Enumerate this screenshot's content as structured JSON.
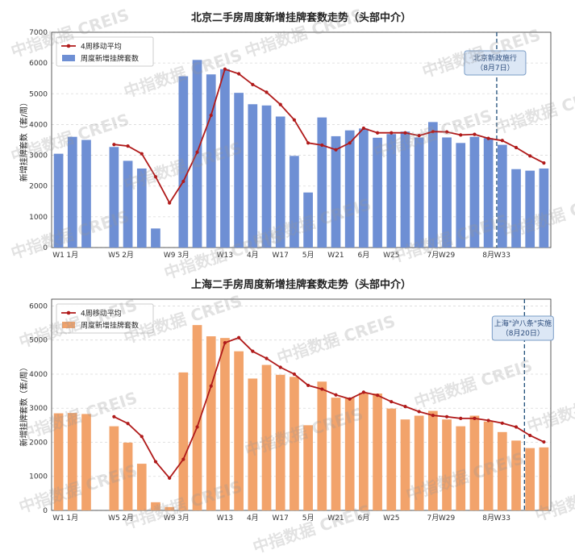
{
  "colors": {
    "line": "#b01a1a",
    "bar_top": "#6e8fd4",
    "bar_bottom": "#f2a36b",
    "policy_line": "#1f4e79",
    "grid": "#d9d9d9",
    "annot_bg": "#dce7f5",
    "annot_border": "#7a9cc6",
    "annot_text": "#2a4a7a"
  },
  "watermark": {
    "text": "中指数据 CREIS"
  },
  "chart_data": [
    {
      "type": "bar",
      "title": "北京二手房周度新增挂牌套数走势（头部中介）",
      "ylabel": "新增挂牌套数（套/周）",
      "ylim": [
        0,
        7000
      ],
      "yticks": [
        "0",
        "1000",
        "2000",
        "3000",
        "4000",
        "5000",
        "6000",
        "7000"
      ],
      "ytick_values": [
        0,
        1000,
        2000,
        3000,
        4000,
        5000,
        6000,
        7000
      ],
      "week_count": 36,
      "bar_weeks": [
        1,
        2,
        3,
        5,
        6,
        7,
        8,
        10,
        11,
        12,
        13,
        14,
        15,
        16,
        17,
        18,
        19,
        20,
        21,
        22,
        23,
        24,
        25,
        26,
        27,
        28,
        29,
        30,
        31,
        32,
        33,
        34,
        35,
        36
      ],
      "bar_values": [
        3050,
        3600,
        3500,
        3270,
        2820,
        2570,
        620,
        5570,
        6100,
        5630,
        5800,
        5030,
        4660,
        4620,
        4260,
        2980,
        1790,
        4230,
        3620,
        3810,
        3870,
        3570,
        3690,
        3770,
        3580,
        4080,
        3580,
        3400,
        3600,
        3560,
        3340,
        2550,
        2500,
        2570
      ],
      "line_weeks": [
        5,
        6,
        7,
        8,
        9,
        10,
        11,
        12,
        13,
        14,
        15,
        16,
        17,
        18,
        19,
        20,
        21,
        22,
        23,
        24,
        25,
        26,
        27,
        28,
        29,
        30,
        31,
        32,
        33,
        34,
        35,
        36
      ],
      "line_values": [
        3350,
        3300,
        3050,
        2300,
        1450,
        2150,
        3100,
        4300,
        5800,
        5650,
        5300,
        5050,
        4650,
        4150,
        3400,
        3330,
        3180,
        3400,
        3880,
        3730,
        3730,
        3730,
        3640,
        3770,
        3760,
        3660,
        3680,
        3550,
        3480,
        3250,
        2980,
        2750
      ],
      "xtick_labels": [
        {
          "week": 1,
          "text": "W1"
        },
        {
          "week": 2,
          "text": "1月"
        },
        {
          "week": 5,
          "text": "W5"
        },
        {
          "week": 6,
          "text": "2月"
        },
        {
          "week": 9,
          "text": "W9"
        },
        {
          "week": 10,
          "text": "3月"
        },
        {
          "week": 13,
          "text": "W13"
        },
        {
          "week": 15,
          "text": "4月"
        },
        {
          "week": 17,
          "text": "W17"
        },
        {
          "week": 19,
          "text": "5月"
        },
        {
          "week": 21,
          "text": "W21"
        },
        {
          "week": 23,
          "text": "6月"
        },
        {
          "week": 25,
          "text": "W25"
        },
        {
          "week": 28,
          "text": "7月"
        },
        {
          "week": 29,
          "text": "W29"
        },
        {
          "week": 32,
          "text": "8月"
        },
        {
          "week": 33,
          "text": "W33"
        }
      ],
      "policy_week": 32.6,
      "annotation": [
        "北京新政施行",
        "（8月7日）"
      ],
      "legend": [
        {
          "kind": "line",
          "label": "4周移动平均"
        },
        {
          "kind": "bar",
          "label": "周度新增挂牌套数"
        }
      ],
      "legend_position": "top-left",
      "grid": "horizontal dashed"
    },
    {
      "type": "bar",
      "title": "上海二手房周度新增挂牌套数走势（头部中介）",
      "ylabel": "新增挂牌套数（套/周）",
      "ylim": [
        0,
        6200
      ],
      "yticks": [
        "0",
        "1000",
        "2000",
        "3000",
        "4000",
        "5000",
        "6000"
      ],
      "ytick_values": [
        0,
        1000,
        2000,
        3000,
        4000,
        5000,
        6000
      ],
      "week_count": 36,
      "bar_weeks": [
        1,
        2,
        3,
        5,
        6,
        7,
        8,
        9,
        10,
        11,
        12,
        13,
        14,
        15,
        16,
        17,
        18,
        19,
        20,
        21,
        22,
        23,
        24,
        25,
        26,
        27,
        28,
        29,
        30,
        31,
        32,
        33,
        34,
        35,
        36
      ],
      "bar_values": [
        2850,
        2860,
        2830,
        2470,
        1990,
        1370,
        240,
        100,
        4050,
        5440,
        5110,
        5060,
        4670,
        3870,
        4270,
        3980,
        3920,
        2500,
        3780,
        3310,
        3310,
        3450,
        3430,
        2990,
        2670,
        2780,
        2920,
        2670,
        2470,
        2780,
        2610,
        2300,
        2050,
        1830,
        1850
      ],
      "line_weeks": [
        5,
        6,
        7,
        8,
        9,
        10,
        11,
        12,
        13,
        14,
        15,
        16,
        17,
        18,
        19,
        20,
        21,
        22,
        23,
        24,
        25,
        26,
        27,
        28,
        29,
        30,
        31,
        32,
        33,
        34,
        35,
        36
      ],
      "line_values": [
        2750,
        2550,
        2170,
        1430,
        950,
        1500,
        2450,
        3650,
        4920,
        5070,
        4670,
        4460,
        4200,
        4000,
        3670,
        3560,
        3390,
        3270,
        3470,
        3380,
        3190,
        3050,
        2900,
        2790,
        2750,
        2700,
        2700,
        2640,
        2560,
        2450,
        2200,
        2010
      ],
      "xtick_labels": [
        {
          "week": 1,
          "text": "W1"
        },
        {
          "week": 2,
          "text": "1月"
        },
        {
          "week": 5,
          "text": "W5"
        },
        {
          "week": 6,
          "text": "2月"
        },
        {
          "week": 9,
          "text": "W9"
        },
        {
          "week": 10,
          "text": "3月"
        },
        {
          "week": 13,
          "text": "W13"
        },
        {
          "week": 15,
          "text": "4月"
        },
        {
          "week": 17,
          "text": "W17"
        },
        {
          "week": 19,
          "text": "5月"
        },
        {
          "week": 21,
          "text": "W21"
        },
        {
          "week": 23,
          "text": "6月"
        },
        {
          "week": 25,
          "text": "W25"
        },
        {
          "week": 28,
          "text": "7月"
        },
        {
          "week": 29,
          "text": "W29"
        },
        {
          "week": 32,
          "text": "8月"
        },
        {
          "week": 33,
          "text": "W33"
        }
      ],
      "policy_week": 34.6,
      "annotation": [
        "上海\"沪八条\"实施",
        "（8月20日）"
      ],
      "legend": [
        {
          "kind": "line",
          "label": "4周移动平均"
        },
        {
          "kind": "bar",
          "label": "周度新增挂牌套数"
        }
      ],
      "legend_position": "top-left",
      "grid": "horizontal dashed"
    }
  ]
}
